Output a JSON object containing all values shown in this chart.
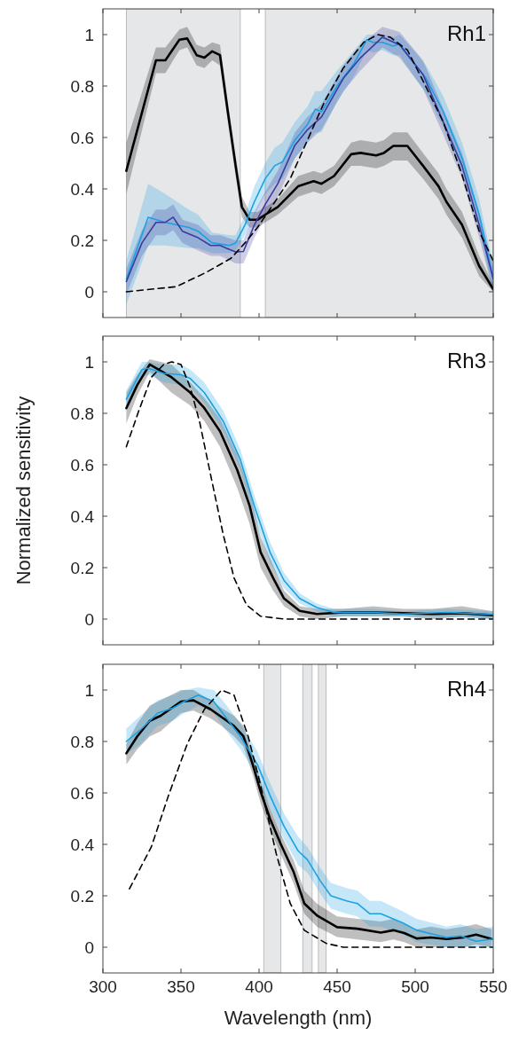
{
  "chart_data": [
    {
      "type": "line",
      "title": "Rh1",
      "xlim": [
        300,
        550
      ],
      "ylim": [
        -0.1,
        1.1
      ],
      "xticks": [
        300,
        350,
        400,
        450,
        500,
        550
      ],
      "yticks": [
        0,
        0.2,
        0.4,
        0.6,
        0.8,
        1
      ],
      "tick_labels": "y",
      "marker": "none",
      "bands": [
        {
          "axis": "x",
          "from": 315,
          "to": 388,
          "color": "#e6e7e8"
        },
        {
          "axis": "x",
          "from": 404,
          "to": 550,
          "color": "#e6e7e8"
        }
      ],
      "series": [
        {
          "color": "#000000",
          "x": [
            315,
            334,
            340,
            349,
            354,
            360,
            365,
            370,
            375,
            380,
            385,
            389,
            394,
            399,
            404,
            412,
            425,
            435,
            440,
            448,
            459,
            465,
            475,
            480,
            486,
            495,
            505,
            515,
            520,
            530,
            541,
            550
          ],
          "values": [
            0.47,
            0.9,
            0.9,
            0.98,
            0.985,
            0.92,
            0.91,
            0.935,
            0.92,
            0.7,
            0.49,
            0.33,
            0.28,
            0.28,
            0.3,
            0.33,
            0.41,
            0.43,
            0.42,
            0.45,
            0.535,
            0.54,
            0.53,
            0.54,
            0.567,
            0.567,
            0.49,
            0.41,
            0.35,
            0.26,
            0.1,
            0.01
          ],
          "lower": [
            0.38,
            0.85,
            0.85,
            0.94,
            0.95,
            0.88,
            0.87,
            0.9,
            0.88,
            0.66,
            0.45,
            0.29,
            0.25,
            0.25,
            0.27,
            0.3,
            0.37,
            0.39,
            0.38,
            0.41,
            0.49,
            0.49,
            0.48,
            0.49,
            0.51,
            0.51,
            0.44,
            0.36,
            0.3,
            0.21,
            0.06,
            0
          ],
          "upper": [
            0.58,
            0.95,
            0.95,
            1.02,
            1.03,
            0.96,
            0.95,
            0.97,
            0.96,
            0.74,
            0.53,
            0.37,
            0.31,
            0.31,
            0.33,
            0.36,
            0.45,
            0.47,
            0.46,
            0.49,
            0.58,
            0.59,
            0.58,
            0.59,
            0.62,
            0.62,
            0.54,
            0.46,
            0.4,
            0.31,
            0.14,
            0.03
          ]
        },
        {
          "color": "#1ba1e2",
          "x": [
            315,
            329,
            340,
            355,
            361,
            370,
            381,
            385,
            391,
            397,
            404,
            410,
            415,
            423,
            431,
            436,
            440,
            450,
            461,
            469,
            473,
            479,
            486,
            490,
            499,
            507,
            518,
            530,
            541,
            550
          ],
          "values": [
            0.05,
            0.29,
            0.27,
            0.25,
            0.235,
            0.19,
            0.18,
            0.19,
            0.26,
            0.35,
            0.44,
            0.49,
            0.505,
            0.59,
            0.65,
            0.71,
            0.7,
            0.8,
            0.89,
            0.98,
            0.97,
            0.97,
            0.955,
            0.965,
            0.89,
            0.83,
            0.7,
            0.52,
            0.3,
            0.05
          ],
          "lower": [
            -0.05,
            0.18,
            0.18,
            0.17,
            0.17,
            0.15,
            0.15,
            0.16,
            0.22,
            0.3,
            0.38,
            0.42,
            0.44,
            0.52,
            0.58,
            0.62,
            0.62,
            0.74,
            0.84,
            0.94,
            0.93,
            0.94,
            0.92,
            0.92,
            0.84,
            0.77,
            0.64,
            0.46,
            0.24,
            0.0
          ],
          "upper": [
            0.12,
            0.42,
            0.38,
            0.32,
            0.3,
            0.23,
            0.22,
            0.22,
            0.3,
            0.41,
            0.5,
            0.56,
            0.58,
            0.66,
            0.72,
            0.78,
            0.78,
            0.86,
            0.94,
            1.0,
            1.0,
            1.0,
            0.99,
            1.0,
            0.94,
            0.88,
            0.76,
            0.58,
            0.36,
            0.1
          ]
        },
        {
          "color": "#3b3b9e",
          "x": [
            315,
            325,
            334,
            340,
            345,
            351,
            361,
            369,
            375,
            385,
            390,
            397,
            404,
            412,
            423,
            431,
            440,
            454,
            465,
            479,
            490,
            505,
            518,
            530,
            541,
            550
          ],
          "values": [
            0.04,
            0.19,
            0.27,
            0.27,
            0.29,
            0.235,
            0.21,
            0.18,
            0.18,
            0.155,
            0.157,
            0.26,
            0.34,
            0.42,
            0.57,
            0.63,
            0.68,
            0.83,
            0.91,
            0.99,
            0.96,
            0.845,
            0.66,
            0.49,
            0.26,
            0.05
          ],
          "lower": [
            -0.01,
            0.14,
            0.22,
            0.22,
            0.24,
            0.19,
            0.16,
            0.14,
            0.14,
            0.11,
            0.11,
            0.21,
            0.29,
            0.37,
            0.52,
            0.58,
            0.63,
            0.78,
            0.86,
            0.95,
            0.91,
            0.79,
            0.61,
            0.44,
            0.21,
            0.0
          ],
          "upper": [
            0.09,
            0.24,
            0.32,
            0.32,
            0.34,
            0.28,
            0.26,
            0.22,
            0.22,
            0.2,
            0.2,
            0.31,
            0.39,
            0.47,
            0.62,
            0.68,
            0.73,
            0.88,
            0.96,
            1.03,
            1.01,
            0.9,
            0.71,
            0.54,
            0.31,
            0.1
          ]
        },
        {
          "color": "#000000",
          "line_style": "dashed",
          "x": [
            315,
            347,
            366,
            382,
            391,
            399,
            408,
            420,
            431,
            442,
            454,
            467,
            476,
            484,
            495,
            505,
            518,
            530,
            541,
            550
          ],
          "values": [
            0,
            0.02,
            0.075,
            0.13,
            0.19,
            0.25,
            0.33,
            0.44,
            0.59,
            0.74,
            0.87,
            0.97,
            1.0,
            0.99,
            0.94,
            0.82,
            0.66,
            0.455,
            0.235,
            0.12
          ]
        }
      ]
    },
    {
      "type": "line",
      "title": "Rh3",
      "ylabel": "Normalized sensitivity",
      "xlim": [
        300,
        550
      ],
      "ylim": [
        -0.1,
        1.1
      ],
      "xticks": [
        300,
        350,
        400,
        450,
        500,
        550
      ],
      "yticks": [
        0,
        0.2,
        0.4,
        0.6,
        0.8,
        1
      ],
      "tick_labels": "y",
      "marker": "none",
      "series": [
        {
          "color": "#000000",
          "x": [
            315,
            322,
            330,
            344,
            356,
            365,
            375,
            386,
            394,
            401,
            409,
            416,
            426,
            437,
            454,
            473,
            492,
            511,
            530,
            550
          ],
          "values": [
            0.82,
            0.91,
            0.99,
            0.94,
            0.88,
            0.82,
            0.73,
            0.58,
            0.44,
            0.26,
            0.16,
            0.08,
            0.032,
            0.02,
            0.026,
            0.026,
            0.023,
            0.02,
            0.023,
            0.015
          ],
          "lower": [
            0.76,
            0.87,
            0.96,
            0.88,
            0.83,
            0.77,
            0.67,
            0.51,
            0.37,
            0.2,
            0.11,
            0.05,
            0.01,
            0.0,
            0.01,
            0.01,
            0.01,
            0.0,
            0.01,
            0.0
          ],
          "upper": [
            0.88,
            0.95,
            1.01,
            0.99,
            0.92,
            0.86,
            0.78,
            0.64,
            0.5,
            0.32,
            0.21,
            0.11,
            0.05,
            0.04,
            0.04,
            0.05,
            0.04,
            0.04,
            0.05,
            0.03
          ]
        },
        {
          "color": "#1ba1e2",
          "x": [
            315,
            325,
            329,
            339,
            350,
            356,
            365,
            377,
            388,
            397,
            407,
            416,
            426,
            437,
            448,
            473,
            492,
            520,
            550
          ],
          "values": [
            0.855,
            0.97,
            0.975,
            0.955,
            0.95,
            0.935,
            0.88,
            0.77,
            0.62,
            0.44,
            0.26,
            0.15,
            0.08,
            0.045,
            0.026,
            0.026,
            0.02,
            0.026,
            0.018
          ],
          "lower": [
            0.82,
            0.94,
            0.95,
            0.92,
            0.91,
            0.9,
            0.84,
            0.73,
            0.58,
            0.4,
            0.22,
            0.12,
            0.06,
            0.03,
            0.01,
            0.01,
            0.01,
            0.01,
            0.0
          ],
          "upper": [
            0.89,
            1.0,
            1.0,
            0.99,
            0.99,
            0.97,
            0.92,
            0.81,
            0.66,
            0.48,
            0.3,
            0.18,
            0.1,
            0.06,
            0.04,
            0.04,
            0.03,
            0.04,
            0.03
          ]
        },
        {
          "color": "#000000",
          "line_style": "dashed",
          "x": [
            315,
            323,
            331,
            339,
            344,
            350,
            356,
            362,
            369,
            377,
            384,
            392,
            401,
            416,
            550
          ],
          "values": [
            0.67,
            0.81,
            0.94,
            0.99,
            1.0,
            0.99,
            0.9,
            0.765,
            0.56,
            0.33,
            0.16,
            0.055,
            0.011,
            0,
            0
          ]
        }
      ]
    },
    {
      "type": "line",
      "title": "Rh4",
      "xlabel": "Wavelength (nm)",
      "xlim": [
        300,
        550
      ],
      "ylim": [
        -0.1,
        1.1
      ],
      "xticks": [
        300,
        350,
        400,
        450,
        500,
        550
      ],
      "yticks": [
        0,
        0.2,
        0.4,
        0.6,
        0.8,
        1
      ],
      "marker": "none",
      "bands": [
        {
          "axis": "x",
          "from": 403,
          "to": 414,
          "color": "#e6e7e8"
        },
        {
          "axis": "x",
          "from": 428,
          "to": 434,
          "color": "#e6e7e8"
        },
        {
          "axis": "x",
          "from": 438,
          "to": 443,
          "color": "#e6e7e8"
        }
      ],
      "series": [
        {
          "color": "#000000",
          "x": [
            315,
            322,
            330,
            337,
            350,
            358,
            369,
            376,
            384,
            390,
            396,
            401,
            407,
            414,
            422,
            429,
            437,
            450,
            463,
            478,
            486,
            493,
            501,
            510,
            520,
            531,
            539,
            549
          ],
          "values": [
            0.754,
            0.82,
            0.88,
            0.9,
            0.955,
            0.96,
            0.925,
            0.895,
            0.86,
            0.82,
            0.71,
            0.605,
            0.5,
            0.4,
            0.295,
            0.17,
            0.124,
            0.078,
            0.072,
            0.057,
            0.066,
            0.055,
            0.034,
            0.038,
            0.032,
            0.038,
            0.049,
            0.032
          ],
          "lower": [
            0.71,
            0.77,
            0.82,
            0.84,
            0.91,
            0.92,
            0.89,
            0.86,
            0.82,
            0.78,
            0.67,
            0.56,
            0.46,
            0.36,
            0.25,
            0.13,
            0.08,
            0.04,
            0.03,
            0.02,
            0.03,
            0.02,
            0.0,
            0.0,
            0.0,
            0.0,
            0.01,
            0.0
          ],
          "upper": [
            0.79,
            0.87,
            0.94,
            0.96,
            1.0,
            1.0,
            0.96,
            0.93,
            0.9,
            0.86,
            0.75,
            0.65,
            0.54,
            0.44,
            0.34,
            0.22,
            0.17,
            0.12,
            0.11,
            0.1,
            0.11,
            0.09,
            0.07,
            0.08,
            0.07,
            0.08,
            0.09,
            0.07
          ]
        },
        {
          "color": "#1ba1e2",
          "x": [
            315,
            324,
            335,
            345,
            352,
            361,
            371,
            378,
            388,
            399,
            407,
            416,
            425,
            431,
            439,
            446,
            456,
            463,
            471,
            478,
            492,
            501,
            520,
            529,
            539,
            550
          ],
          "values": [
            0.8,
            0.845,
            0.91,
            0.93,
            0.955,
            0.98,
            0.955,
            0.9,
            0.82,
            0.71,
            0.59,
            0.47,
            0.375,
            0.34,
            0.26,
            0.2,
            0.18,
            0.17,
            0.13,
            0.13,
            0.095,
            0.066,
            0.038,
            0.044,
            0.023,
            0.032
          ],
          "lower": [
            0.75,
            0.79,
            0.86,
            0.88,
            0.91,
            0.94,
            0.91,
            0.85,
            0.77,
            0.66,
            0.54,
            0.42,
            0.32,
            0.29,
            0.21,
            0.15,
            0.13,
            0.12,
            0.08,
            0.08,
            0.05,
            0.02,
            0.0,
            0.0,
            0.0,
            0.0
          ],
          "upper": [
            0.85,
            0.9,
            0.96,
            0.98,
            1.0,
            1.01,
            1.0,
            0.95,
            0.87,
            0.76,
            0.64,
            0.52,
            0.43,
            0.39,
            0.31,
            0.25,
            0.23,
            0.22,
            0.18,
            0.18,
            0.14,
            0.11,
            0.08,
            0.09,
            0.07,
            0.08
          ]
        },
        {
          "color": "#000000",
          "line_style": "dashed",
          "x": [
            317,
            331,
            342,
            354,
            365,
            376,
            384,
            393,
            401,
            411,
            420,
            429,
            443,
            454,
            550
          ],
          "values": [
            0.227,
            0.39,
            0.59,
            0.79,
            0.925,
            1.0,
            0.98,
            0.82,
            0.63,
            0.364,
            0.17,
            0.066,
            0.015,
            0,
            0
          ]
        }
      ]
    }
  ]
}
